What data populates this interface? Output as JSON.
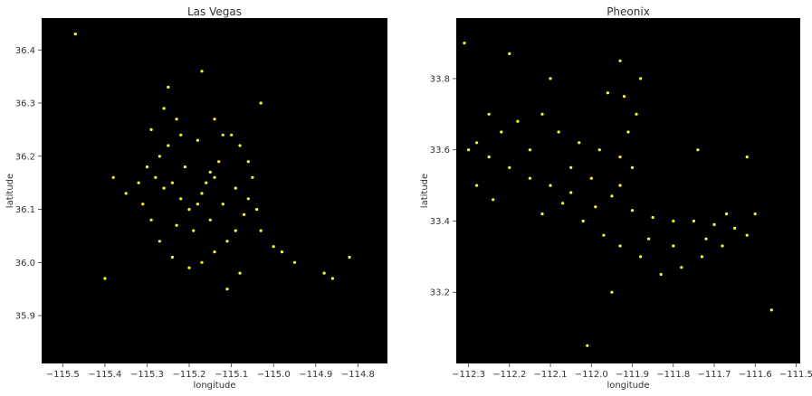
{
  "chart_data": [
    {
      "type": "scatter",
      "title": "Las Vegas",
      "xlabel": "longitude",
      "ylabel": "latitude",
      "xlim": [
        -115.55,
        -114.73
      ],
      "ylim": [
        35.81,
        36.46
      ],
      "xticks": [
        -115.5,
        -115.4,
        -115.3,
        -115.2,
        -115.1,
        -115.0,
        -114.9,
        -114.8
      ],
      "xtick_labels": [
        "−115.5",
        "−115.4",
        "−115.3",
        "−115.2",
        "−115.1",
        "−115.0",
        "−114.9",
        "−114.8"
      ],
      "yticks": [
        35.9,
        36.0,
        36.1,
        36.2,
        36.3,
        36.4
      ],
      "ytick_labels": [
        "35.9",
        "36.0",
        "36.1",
        "36.2",
        "36.3",
        "36.4"
      ],
      "background": "#000000",
      "point_color": "#ffff00",
      "grid": false,
      "points": [
        [
          -115.17,
          36.13
        ],
        [
          -115.16,
          36.15
        ],
        [
          -115.15,
          36.17
        ],
        [
          -115.14,
          36.16
        ],
        [
          -115.18,
          36.11
        ],
        [
          -115.2,
          36.1
        ],
        [
          -115.22,
          36.12
        ],
        [
          -115.24,
          36.15
        ],
        [
          -115.26,
          36.14
        ],
        [
          -115.28,
          36.16
        ],
        [
          -115.3,
          36.18
        ],
        [
          -115.27,
          36.2
        ],
        [
          -115.25,
          36.22
        ],
        [
          -115.22,
          36.24
        ],
        [
          -115.18,
          36.23
        ],
        [
          -115.12,
          36.24
        ],
        [
          -115.08,
          36.22
        ],
        [
          -115.06,
          36.19
        ],
        [
          -115.05,
          36.16
        ],
        [
          -115.06,
          36.12
        ],
        [
          -115.07,
          36.09
        ],
        [
          -115.09,
          36.06
        ],
        [
          -115.11,
          36.04
        ],
        [
          -115.14,
          36.02
        ],
        [
          -115.17,
          36.0
        ],
        [
          -115.2,
          35.99
        ],
        [
          -115.24,
          36.01
        ],
        [
          -115.27,
          36.04
        ],
        [
          -115.29,
          36.08
        ],
        [
          -115.31,
          36.11
        ],
        [
          -115.32,
          36.15
        ],
        [
          -115.29,
          36.25
        ],
        [
          -115.26,
          36.29
        ],
        [
          -115.23,
          36.27
        ],
        [
          -115.14,
          36.27
        ],
        [
          -115.1,
          36.24
        ],
        [
          -115.03,
          36.06
        ],
        [
          -115.0,
          36.03
        ],
        [
          -114.98,
          36.02
        ],
        [
          -114.95,
          36.0
        ],
        [
          -114.88,
          35.98
        ],
        [
          -114.86,
          35.97
        ],
        [
          -114.82,
          36.01
        ],
        [
          -115.12,
          36.11
        ],
        [
          -115.15,
          36.08
        ],
        [
          -115.19,
          36.06
        ],
        [
          -115.23,
          36.07
        ],
        [
          -115.21,
          36.18
        ],
        [
          -115.13,
          36.19
        ],
        [
          -115.09,
          36.14
        ],
        [
          -115.04,
          36.1
        ],
        [
          -115.35,
          36.13
        ],
        [
          -115.38,
          36.16
        ],
        [
          -115.11,
          35.95
        ],
        [
          -115.08,
          35.98
        ],
        [
          -115.25,
          36.33
        ],
        [
          -115.47,
          36.43
        ],
        [
          -115.17,
          36.36
        ],
        [
          -115.4,
          35.97
        ],
        [
          -115.03,
          36.3
        ]
      ]
    },
    {
      "type": "scatter",
      "title": "Pheonix",
      "xlabel": "longitude",
      "ylabel": "latitude",
      "xlim": [
        -112.33,
        -111.49
      ],
      "ylim": [
        33.0,
        33.97
      ],
      "xticks": [
        -112.3,
        -112.2,
        -112.1,
        -112.0,
        -111.9,
        -111.8,
        -111.7,
        -111.6,
        -111.5
      ],
      "xtick_labels": [
        "−112.3",
        "−112.2",
        "−112.1",
        "−112.0",
        "−111.9",
        "−111.8",
        "−111.7",
        "−111.6",
        "−111.5"
      ],
      "yticks": [
        33.2,
        33.4,
        33.6,
        33.8
      ],
      "ytick_labels": [
        "33.2",
        "33.4",
        "33.6",
        "33.8"
      ],
      "background": "#000000",
      "point_color": "#ffff00",
      "grid": false,
      "points": [
        [
          -112.07,
          33.45
        ],
        [
          -112.05,
          33.48
        ],
        [
          -112.1,
          33.5
        ],
        [
          -112.15,
          33.52
        ],
        [
          -112.2,
          33.55
        ],
        [
          -112.25,
          33.58
        ],
        [
          -112.28,
          33.62
        ],
        [
          -112.22,
          33.65
        ],
        [
          -112.18,
          33.68
        ],
        [
          -112.12,
          33.7
        ],
        [
          -112.08,
          33.65
        ],
        [
          -112.03,
          33.62
        ],
        [
          -111.98,
          33.6
        ],
        [
          -111.93,
          33.58
        ],
        [
          -111.9,
          33.55
        ],
        [
          -111.93,
          33.5
        ],
        [
          -111.95,
          33.47
        ],
        [
          -111.9,
          33.43
        ],
        [
          -111.85,
          33.41
        ],
        [
          -111.8,
          33.4
        ],
        [
          -111.75,
          33.4
        ],
        [
          -111.7,
          33.39
        ],
        [
          -111.65,
          33.38
        ],
        [
          -111.62,
          33.36
        ],
        [
          -111.68,
          33.33
        ],
        [
          -111.73,
          33.3
        ],
        [
          -111.78,
          33.27
        ],
        [
          -111.83,
          33.25
        ],
        [
          -111.88,
          33.3
        ],
        [
          -111.93,
          33.33
        ],
        [
          -111.97,
          33.36
        ],
        [
          -112.02,
          33.4
        ],
        [
          -111.91,
          33.65
        ],
        [
          -111.89,
          33.7
        ],
        [
          -111.92,
          33.75
        ],
        [
          -111.88,
          33.8
        ],
        [
          -111.93,
          33.85
        ],
        [
          -112.2,
          33.87
        ],
        [
          -112.25,
          33.7
        ],
        [
          -112.3,
          33.6
        ],
        [
          -112.28,
          33.5
        ],
        [
          -112.24,
          33.46
        ],
        [
          -112.12,
          33.42
        ],
        [
          -112.0,
          33.52
        ],
        [
          -111.86,
          33.35
        ],
        [
          -111.72,
          33.35
        ],
        [
          -111.67,
          33.42
        ],
        [
          -111.6,
          33.42
        ],
        [
          -111.56,
          33.15
        ],
        [
          -111.74,
          33.6
        ],
        [
          -112.1,
          33.8
        ],
        [
          -111.96,
          33.76
        ],
        [
          -112.15,
          33.6
        ],
        [
          -112.05,
          33.55
        ],
        [
          -111.99,
          33.44
        ],
        [
          -111.8,
          33.33
        ],
        [
          -111.62,
          33.58
        ],
        [
          -112.01,
          33.05
        ],
        [
          -111.95,
          33.2
        ],
        [
          -112.31,
          33.9
        ]
      ]
    }
  ]
}
